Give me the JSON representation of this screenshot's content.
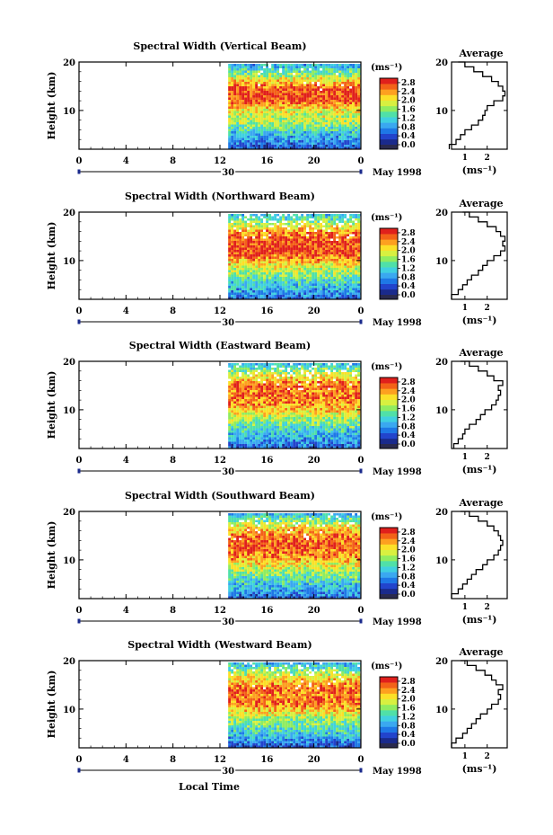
{
  "common": {
    "x_ticks": [
      "0",
      "4",
      "8",
      "12",
      "16",
      "20",
      "0"
    ],
    "y_ticks": [
      "20",
      "10"
    ],
    "ylabel": "Height (km)",
    "date_tick": "30",
    "date_label": "May 1998",
    "xlabel": "Local Time",
    "colorbar_unit": "(ms⁻¹)",
    "colorbar_ticks": [
      "2.8",
      "2.4",
      "2.0",
      "1.6",
      "1.2",
      "0.8",
      "0.4",
      "0.0"
    ],
    "avg_title": "Average",
    "avg_xlabel": "(ms⁻¹)",
    "avg_y_ticks": [
      "20",
      "10"
    ],
    "colors": {
      "scale": [
        "#1a2a8c",
        "#2244cc",
        "#1e78e6",
        "#3aa8f0",
        "#40d0e0",
        "#50e0a8",
        "#90ec60",
        "#d8f040",
        "#fbe028",
        "#fda020",
        "#f36218",
        "#e0201c"
      ],
      "no_data": "#2a2a4e"
    }
  },
  "chart_data": [
    {
      "type": "heatmap",
      "title": "Spectral Width (Vertical Beam)",
      "xlim": [
        0,
        24
      ],
      "ylim": [
        2,
        20
      ],
      "data_start_hour": 12.7,
      "zlim": [
        0.0,
        3.0
      ],
      "profile": [
        0.3,
        0.6,
        0.8,
        1.0,
        1.3,
        1.6,
        1.8,
        1.9,
        2.0,
        2.3,
        2.7,
        2.8,
        2.7,
        2.5,
        2.2,
        1.8,
        1.4,
        1.0,
        0.7
      ],
      "gaps": "few",
      "avg": {
        "x_ticks": [
          "1",
          "2"
        ],
        "xlim": [
          0.4,
          2.9
        ],
        "values": [
          0.3,
          0.6,
          0.8,
          1.0,
          1.3,
          1.6,
          1.8,
          1.9,
          2.0,
          2.3,
          2.7,
          2.8,
          2.7,
          2.5,
          2.2,
          1.8,
          1.4,
          1.0,
          0.7
        ]
      }
    },
    {
      "type": "heatmap",
      "title": "Spectral Width (Northward Beam)",
      "xlim": [
        0,
        24
      ],
      "ylim": [
        2,
        20
      ],
      "data_start_hour": 12.7,
      "zlim": [
        0.0,
        3.0
      ],
      "profile": [
        0.4,
        0.7,
        0.9,
        1.1,
        1.3,
        1.6,
        1.8,
        2.0,
        2.3,
        2.6,
        2.8,
        2.7,
        2.8,
        2.6,
        2.4,
        2.0,
        1.6,
        1.2,
        0.9
      ],
      "gaps": "many",
      "avg": {
        "x_ticks": [
          "1",
          "2"
        ],
        "xlim": [
          0.4,
          2.9
        ],
        "values": [
          0.4,
          0.7,
          0.9,
          1.1,
          1.3,
          1.6,
          1.8,
          2.0,
          2.3,
          2.6,
          2.8,
          2.7,
          2.8,
          2.6,
          2.4,
          2.0,
          1.6,
          1.2,
          0.9
        ]
      }
    },
    {
      "type": "heatmap",
      "title": "Spectral Width (Eastward Beam)",
      "xlim": [
        0,
        24
      ],
      "ylim": [
        2,
        20
      ],
      "data_start_hour": 12.7,
      "zlim": [
        0.0,
        3.0
      ],
      "profile": [
        0.5,
        0.7,
        0.9,
        1.0,
        1.2,
        1.5,
        1.7,
        1.9,
        2.2,
        2.4,
        2.5,
        2.6,
        2.5,
        2.7,
        2.3,
        2.0,
        1.6,
        1.2,
        0.8
      ],
      "gaps": "many",
      "avg": {
        "x_ticks": [
          "1",
          "2"
        ],
        "xlim": [
          0.4,
          2.9
        ],
        "values": [
          0.5,
          0.7,
          0.9,
          1.0,
          1.2,
          1.5,
          1.7,
          1.9,
          2.2,
          2.4,
          2.5,
          2.6,
          2.5,
          2.7,
          2.3,
          2.0,
          1.6,
          1.2,
          0.8
        ]
      }
    },
    {
      "type": "heatmap",
      "title": "Spectral Width (Southward Beam)",
      "xlim": [
        0,
        24
      ],
      "ylim": [
        2,
        20
      ],
      "data_start_hour": 12.7,
      "zlim": [
        0.0,
        3.0
      ],
      "profile": [
        0.4,
        0.7,
        0.9,
        1.1,
        1.3,
        1.5,
        1.8,
        2.0,
        2.3,
        2.5,
        2.6,
        2.7,
        2.6,
        2.5,
        2.3,
        2.0,
        1.6,
        1.2,
        0.8
      ],
      "gaps": "some",
      "avg": {
        "x_ticks": [
          "1",
          "2"
        ],
        "xlim": [
          0.4,
          2.9
        ],
        "values": [
          0.4,
          0.7,
          0.9,
          1.1,
          1.3,
          1.5,
          1.8,
          2.0,
          2.3,
          2.5,
          2.6,
          2.7,
          2.6,
          2.5,
          2.3,
          2.0,
          1.6,
          1.2,
          0.8
        ]
      }
    },
    {
      "type": "heatmap",
      "title": "Spectral Width (Westward Beam)",
      "xlim": [
        0,
        24
      ],
      "ylim": [
        2,
        20
      ],
      "data_start_hour": 12.7,
      "zlim": [
        0.0,
        3.0
      ],
      "profile": [
        0.4,
        0.6,
        0.9,
        1.1,
        1.3,
        1.5,
        1.7,
        2.0,
        2.2,
        2.5,
        2.6,
        2.5,
        2.7,
        2.4,
        2.2,
        1.9,
        1.5,
        1.1,
        0.8
      ],
      "gaps": "some",
      "avg": {
        "x_ticks": [
          "1",
          "2"
        ],
        "xlim": [
          0.4,
          2.9
        ],
        "values": [
          0.4,
          0.6,
          0.9,
          1.1,
          1.3,
          1.5,
          1.7,
          2.0,
          2.2,
          2.5,
          2.6,
          2.5,
          2.7,
          2.4,
          2.2,
          1.9,
          1.5,
          1.1,
          0.8
        ]
      }
    }
  ]
}
